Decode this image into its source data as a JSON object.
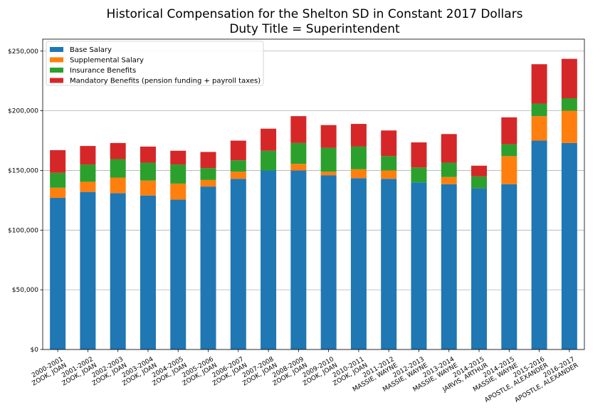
{
  "chart_data": {
    "type": "bar",
    "stacked": true,
    "title": "Historical Compensation for the Shelton SD in Constant 2017 Dollars",
    "subtitle": "Duty Title = Superintendent",
    "xlabel": "",
    "ylabel": "",
    "ylim": [
      0,
      260000
    ],
    "yticks": [
      0,
      50000,
      100000,
      150000,
      200000,
      250000
    ],
    "ytick_labels": [
      "$0",
      "$50,000",
      "$100,000",
      "$150,000",
      "$200,000",
      "$250,000"
    ],
    "grid": "horizontal",
    "legend_position": "top-left",
    "categories": [
      [
        "2000-2001",
        "ZOOK, JOAN"
      ],
      [
        "2001-2002",
        "ZOOK, JOAN"
      ],
      [
        "2002-2003",
        "ZOOK, JOAN"
      ],
      [
        "2003-2004",
        "ZOOK, JOAN"
      ],
      [
        "2004-2005",
        "ZOOK, JOAN"
      ],
      [
        "2005-2006",
        "ZOOK, JOAN"
      ],
      [
        "2006-2007",
        "ZOOK, JOAN"
      ],
      [
        "2007-2008",
        "ZOOK, JOAN"
      ],
      [
        "2008-2009",
        "ZOOK, JOAN"
      ],
      [
        "2009-2010",
        "ZOOK, JOAN"
      ],
      [
        "2010-2011",
        "ZOOK, JOAN"
      ],
      [
        "2011-2012",
        "MASSIE, WAYNE"
      ],
      [
        "2012-2013",
        "MASSIE, WAYNE"
      ],
      [
        "2013-2014",
        "MASSIE, WAYNE"
      ],
      [
        "2014-2015",
        "JARVIS, ARTHUR"
      ],
      [
        "2014-2015",
        "MASSIE, WAYNE"
      ],
      [
        "2015-2016",
        "APOSTLE, ALEXANDER"
      ],
      [
        "2016-2017",
        "APOSTLE, ALEXANDER"
      ]
    ],
    "series": [
      {
        "name": "Base Salary",
        "color": "#1f77b4",
        "values": [
          127000,
          132000,
          131000,
          129000,
          125500,
          136500,
          143000,
          150000,
          150000,
          146000,
          143500,
          143000,
          140000,
          138500,
          135000,
          138500,
          175000,
          173000
        ]
      },
      {
        "name": "Supplemental Salary",
        "color": "#ff7f0e",
        "values": [
          8500,
          8500,
          13000,
          12500,
          13500,
          5500,
          6000,
          0,
          5500,
          3000,
          7500,
          7000,
          0,
          6000,
          0,
          23500,
          20500,
          27000
        ]
      },
      {
        "name": "Insurance Benefits",
        "color": "#2ca02c",
        "values": [
          12500,
          14500,
          15500,
          15000,
          16000,
          10000,
          9500,
          16500,
          17500,
          20000,
          19000,
          12000,
          12500,
          12000,
          10000,
          10000,
          10500,
          10500
        ]
      },
      {
        "name": "Mandatory Benefits (pension funding + payroll taxes)",
        "color": "#d62728",
        "values": [
          19000,
          15500,
          13500,
          13500,
          11500,
          13500,
          16500,
          18500,
          22500,
          19000,
          19000,
          21500,
          21000,
          24000,
          9000,
          22500,
          33000,
          33000
        ]
      }
    ]
  }
}
